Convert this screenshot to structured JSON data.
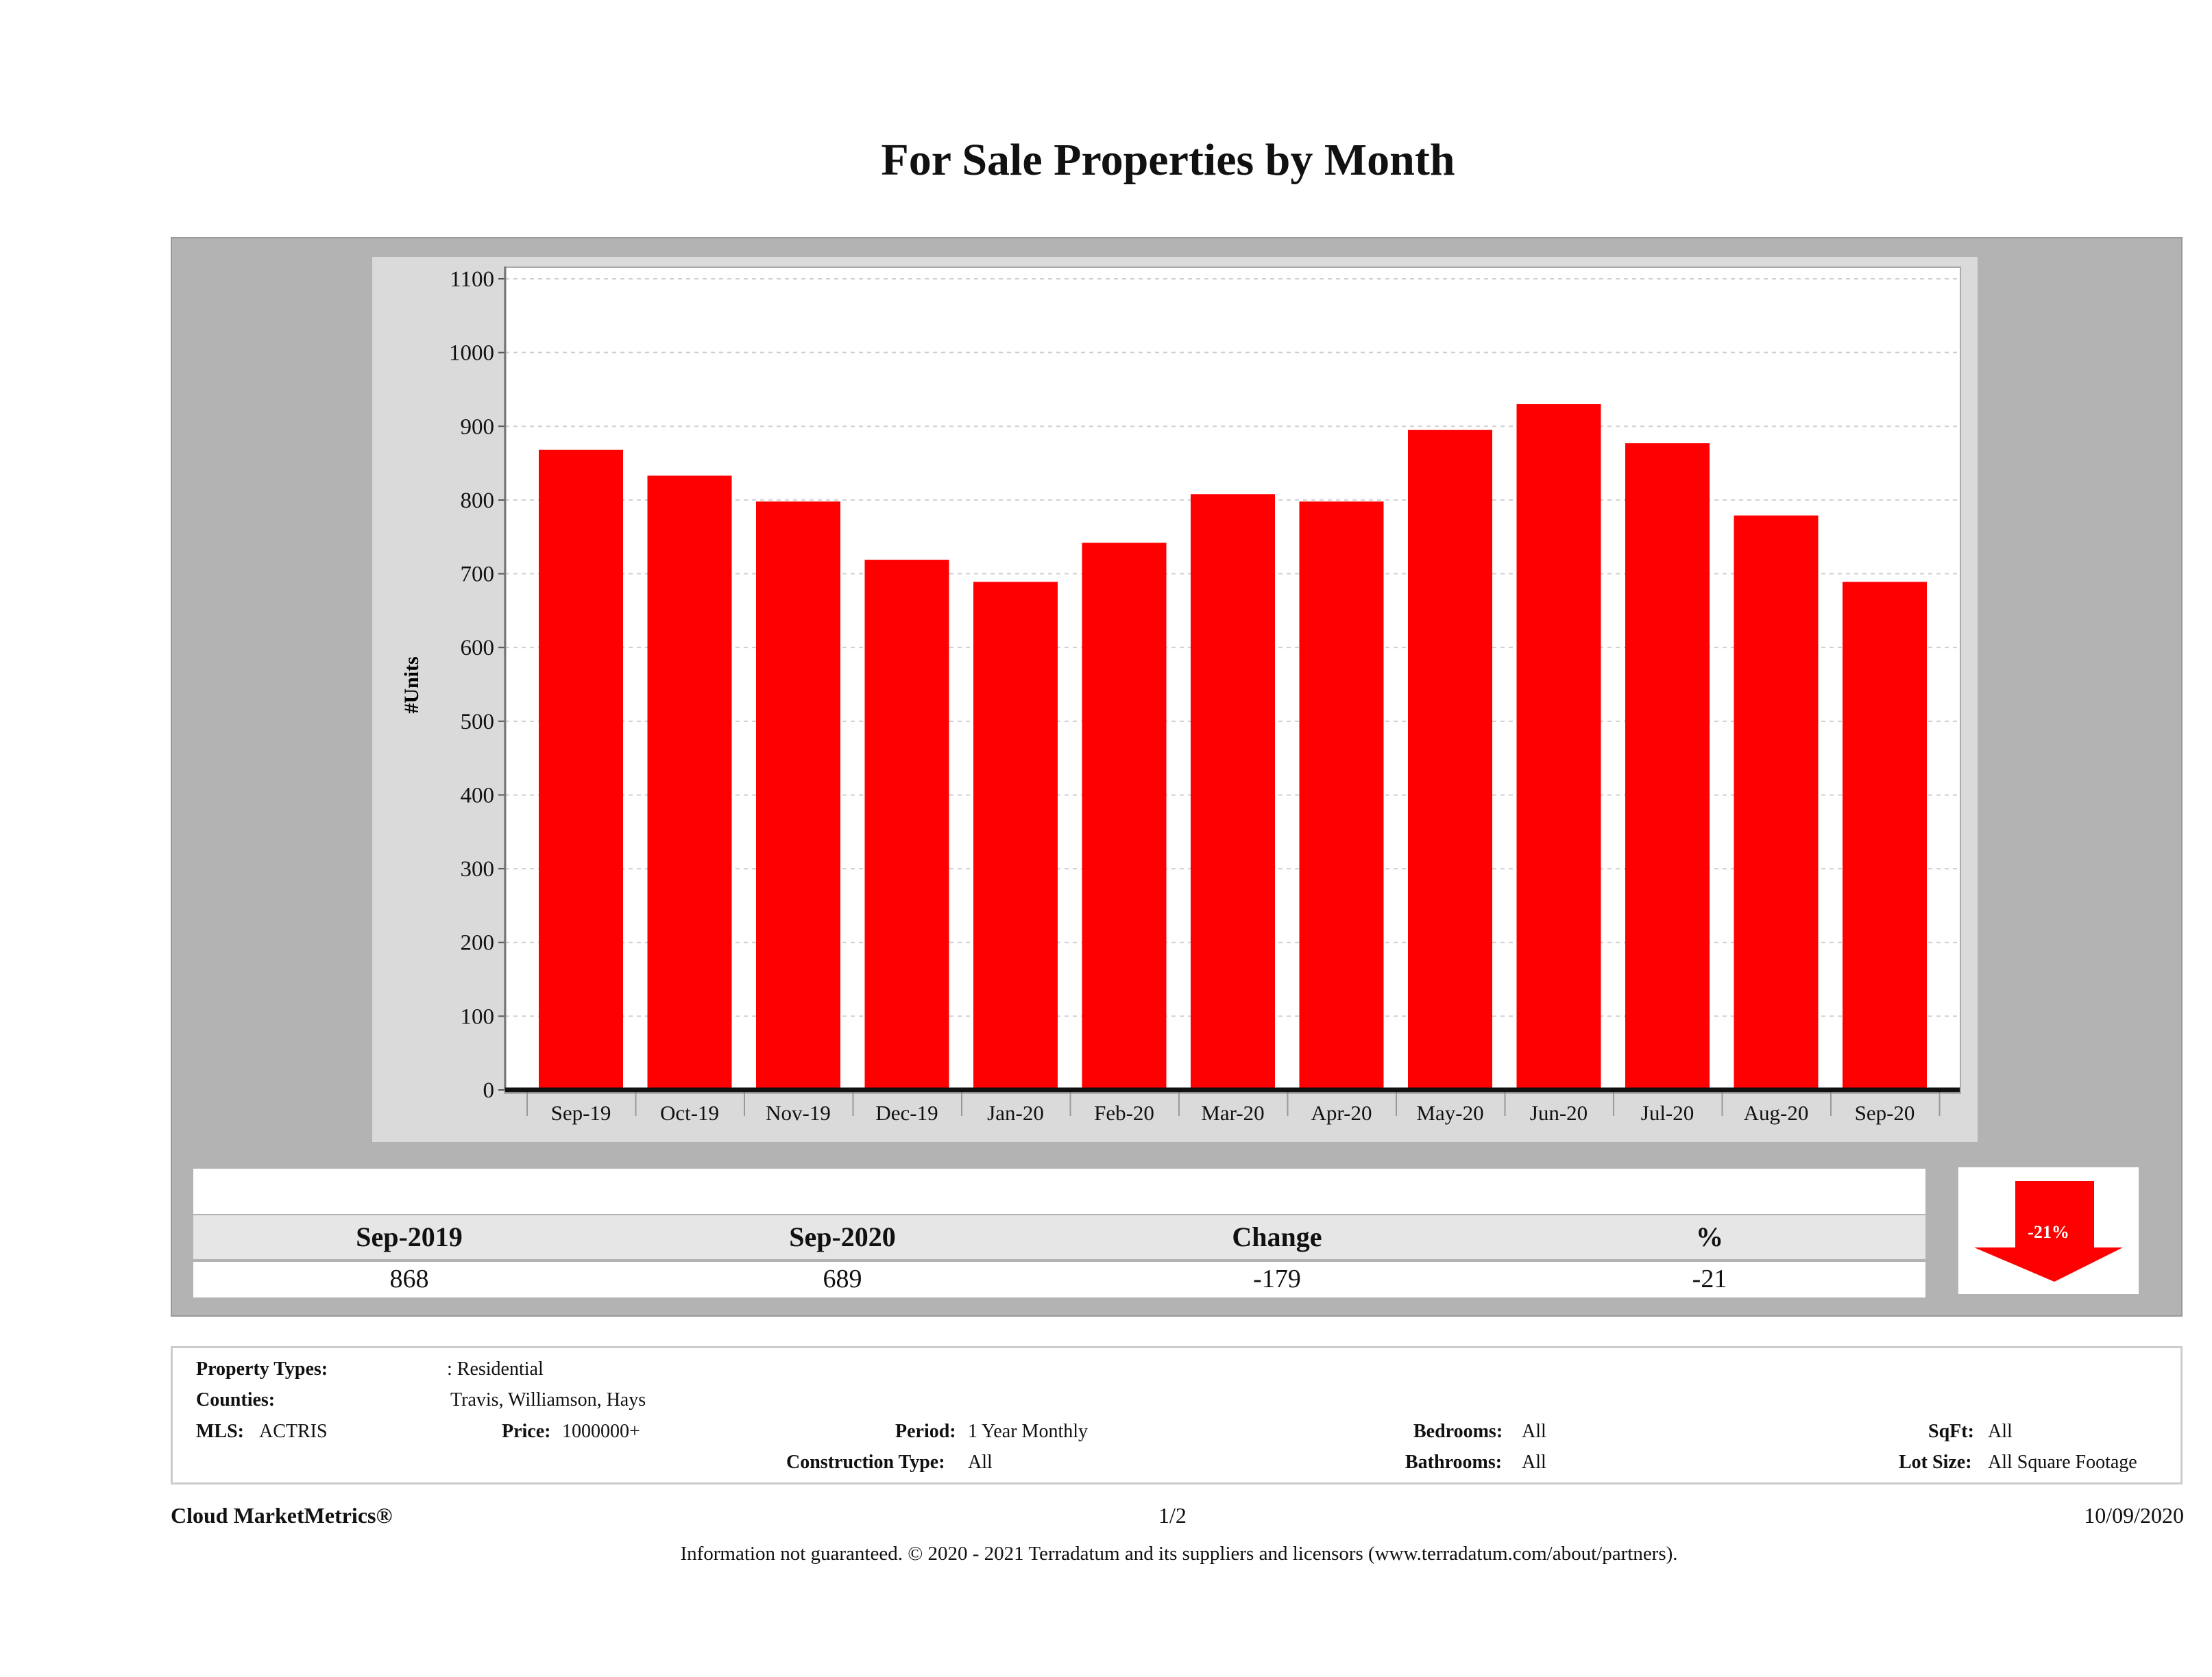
{
  "title": "For Sale Properties by Month",
  "chart_data": {
    "type": "bar",
    "title": "For Sale Properties by Month",
    "xlabel": "",
    "ylabel": "#Units",
    "ylim": [
      0,
      1100
    ],
    "yticks": [
      0,
      100,
      200,
      300,
      400,
      500,
      600,
      700,
      800,
      900,
      1000,
      1100
    ],
    "grid": true,
    "categories": [
      "Sep-19",
      "Oct-19",
      "Nov-19",
      "Dec-19",
      "Jan-20",
      "Feb-20",
      "Mar-20",
      "Apr-20",
      "May-20",
      "Jun-20",
      "Jul-20",
      "Aug-20",
      "Sep-20"
    ],
    "values": [
      868,
      833,
      798,
      719,
      689,
      742,
      808,
      798,
      895,
      930,
      877,
      779,
      689
    ],
    "bar_color": "#ff0000"
  },
  "summary": {
    "headers": [
      "Sep-2019",
      "Sep-2020",
      "Change",
      "%"
    ],
    "values": [
      "868",
      "689",
      "-179",
      "-21"
    ],
    "badge": "-21%",
    "badge_icon": "down-arrow-icon",
    "badge_color": "#ff0000"
  },
  "criteria": {
    "property_types_label": "Property Types:",
    "property_types_value": ": Residential",
    "counties_label": "Counties:",
    "counties_value": "Travis, Williamson, Hays",
    "mls_label": "MLS:",
    "mls_value": "ACTRIS",
    "price_label": "Price:",
    "price_value": "1000000+",
    "period_label": "Period:",
    "period_value": "1 Year Monthly",
    "bedrooms_label": "Bedrooms:",
    "bedrooms_value": "All",
    "sqft_label": "SqFt:",
    "sqft_value": "All",
    "construction_label": "Construction Type:",
    "construction_value": "All",
    "bathrooms_label": "Bathrooms:",
    "bathrooms_value": "All",
    "lotsize_label": "Lot Size:",
    "lotsize_value": "All Square Footage"
  },
  "footer": {
    "brand": "Cloud MarketMetrics®",
    "page": "1/2",
    "date": "10/09/2020",
    "disclaimer": "Information not guaranteed. © 2020 - 2021 Terradatum and its suppliers and licensors (www.terradatum.com/about/partners)."
  }
}
